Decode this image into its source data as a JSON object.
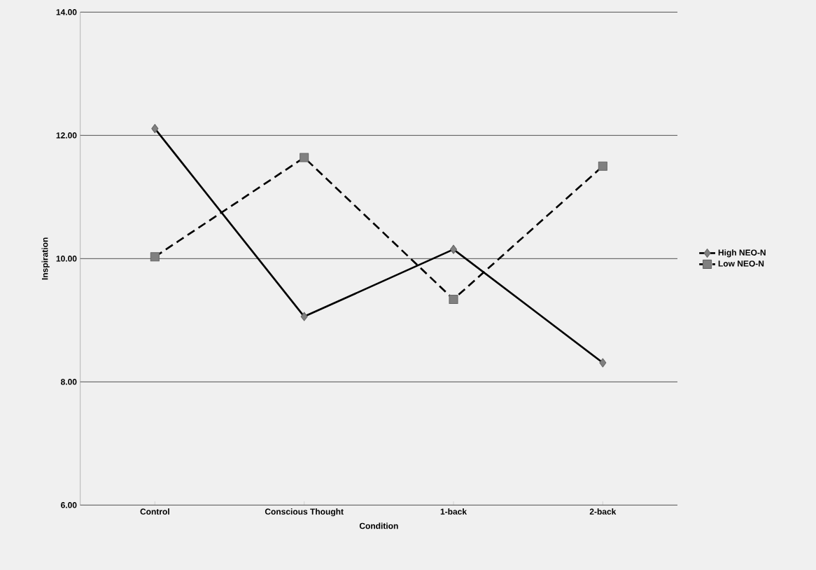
{
  "chart_data": {
    "type": "line",
    "xlabel": "Condition",
    "ylabel": "Inspiration",
    "categories": [
      "Control",
      "Conscious Thought",
      "1-back",
      "2-back"
    ],
    "series": [
      {
        "name": "High NEO-N",
        "color": "#000000",
        "values": [
          12.11,
          9.06,
          10.15,
          8.31
        ],
        "marker": "diamond",
        "line_style": "solid"
      },
      {
        "name": "Low NEO-N",
        "color": "#000000",
        "values": [
          10.03,
          11.64,
          9.34,
          11.5
        ],
        "marker": "square",
        "line_style": "dashed"
      }
    ],
    "ylim": [
      6,
      14
    ],
    "yticks": [
      {
        "value": 6,
        "label": "6.00"
      },
      {
        "value": 8,
        "label": "8.00"
      },
      {
        "value": 10,
        "label": "10.00"
      },
      {
        "value": 12,
        "label": "12.00"
      },
      {
        "value": 14,
        "label": "14.00"
      }
    ],
    "grid": "y",
    "legend": "right"
  }
}
